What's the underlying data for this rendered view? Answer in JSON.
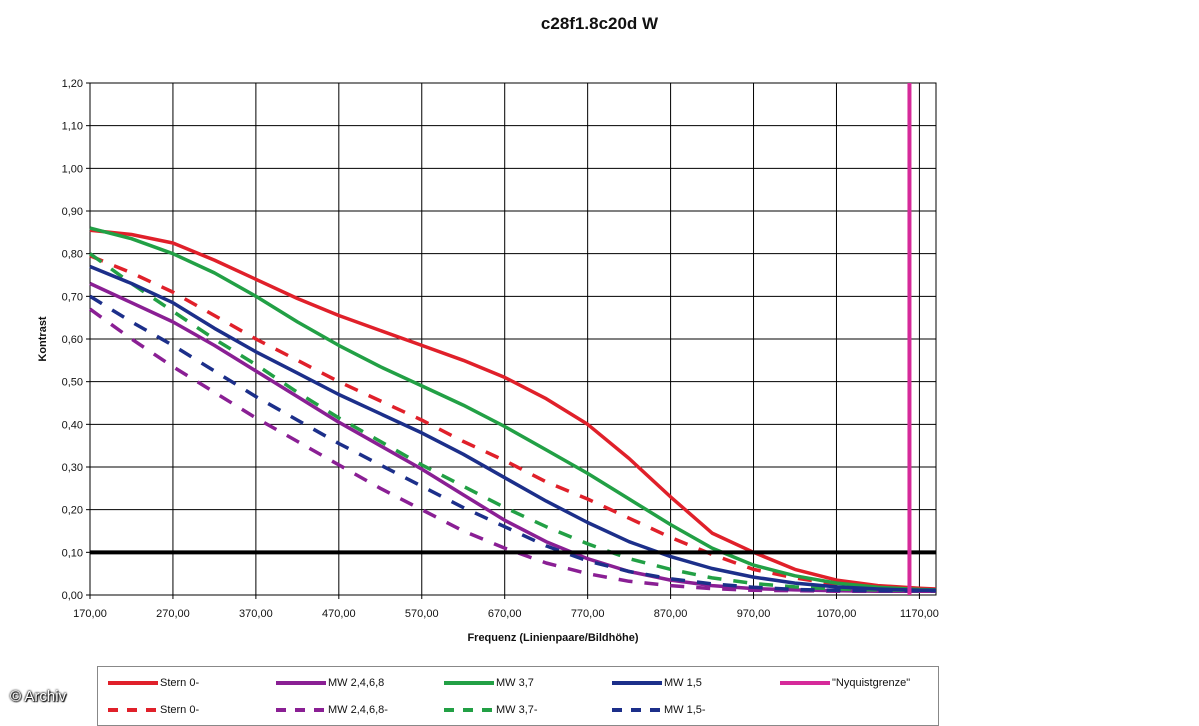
{
  "chart_data": {
    "type": "line",
    "title": "c28f1.8c20d W",
    "xlabel": "Frequenz (Linienpaare/Bildhöhe)",
    "ylabel": "Kontrast",
    "xlim": [
      170,
      1190
    ],
    "ylim": [
      0,
      1.2
    ],
    "x_ticks": [
      "170,00",
      "270,00",
      "370,00",
      "470,00",
      "570,00",
      "670,00",
      "770,00",
      "870,00",
      "970,00",
      "1070,00",
      "1170,00"
    ],
    "y_ticks": [
      "0,00",
      "0,10",
      "0,20",
      "0,30",
      "0,40",
      "0,50",
      "0,60",
      "0,70",
      "0,80",
      "0,90",
      "1,00",
      "1,10",
      "1,20"
    ],
    "grid": true,
    "legend": "bottom",
    "x": [
      170,
      220,
      270,
      320,
      370,
      420,
      470,
      520,
      570,
      620,
      670,
      720,
      770,
      820,
      870,
      920,
      970,
      1020,
      1070,
      1120,
      1170,
      1190
    ],
    "series": [
      {
        "name": "Stern 0-",
        "color": "#e0202a",
        "dash": false,
        "values": [
          0.855,
          0.845,
          0.825,
          0.785,
          0.74,
          0.695,
          0.655,
          0.62,
          0.585,
          0.55,
          0.51,
          0.46,
          0.4,
          0.32,
          0.23,
          0.145,
          0.1,
          0.06,
          0.035,
          0.022,
          0.016,
          0.014
        ]
      },
      {
        "name": "Stern 0-",
        "color": "#e0202a",
        "dash": true,
        "values": [
          0.795,
          0.755,
          0.71,
          0.655,
          0.6,
          0.55,
          0.5,
          0.455,
          0.41,
          0.36,
          0.315,
          0.265,
          0.225,
          0.18,
          0.135,
          0.095,
          0.06,
          0.04,
          0.025,
          0.017,
          0.013,
          0.012
        ]
      },
      {
        "name": "MW 2,4,6,8",
        "color": "#8a1f94",
        "dash": false,
        "values": [
          0.73,
          0.685,
          0.64,
          0.585,
          0.525,
          0.465,
          0.405,
          0.35,
          0.295,
          0.235,
          0.175,
          0.125,
          0.085,
          0.055,
          0.035,
          0.022,
          0.015,
          0.012,
          0.01,
          0.009,
          0.009,
          0.009
        ]
      },
      {
        "name": "MW 2,4,6,8-",
        "color": "#8a1f94",
        "dash": true,
        "values": [
          0.67,
          0.6,
          0.535,
          0.475,
          0.415,
          0.36,
          0.305,
          0.25,
          0.2,
          0.15,
          0.11,
          0.075,
          0.05,
          0.032,
          0.022,
          0.015,
          0.011,
          0.01,
          0.009,
          0.009,
          0.009,
          0.009
        ]
      },
      {
        "name": "MW 3,7",
        "color": "#22a045",
        "dash": false,
        "values": [
          0.86,
          0.835,
          0.8,
          0.755,
          0.7,
          0.64,
          0.585,
          0.535,
          0.49,
          0.445,
          0.395,
          0.34,
          0.285,
          0.225,
          0.165,
          0.11,
          0.07,
          0.045,
          0.028,
          0.018,
          0.013,
          0.012
        ]
      },
      {
        "name": "MW 3,7-",
        "color": "#22a045",
        "dash": true,
        "values": [
          0.8,
          0.73,
          0.665,
          0.6,
          0.54,
          0.475,
          0.415,
          0.36,
          0.305,
          0.255,
          0.205,
          0.16,
          0.12,
          0.085,
          0.06,
          0.04,
          0.027,
          0.019,
          0.014,
          0.012,
          0.011,
          0.011
        ]
      },
      {
        "name": "MW 1,5",
        "color": "#1c2f8a",
        "dash": false,
        "values": [
          0.77,
          0.73,
          0.685,
          0.625,
          0.57,
          0.52,
          0.47,
          0.425,
          0.38,
          0.33,
          0.275,
          0.22,
          0.17,
          0.125,
          0.09,
          0.062,
          0.042,
          0.028,
          0.019,
          0.014,
          0.011,
          0.011
        ]
      },
      {
        "name": "MW 1,5-",
        "color": "#1c2f8a",
        "dash": true,
        "values": [
          0.7,
          0.64,
          0.585,
          0.525,
          0.465,
          0.41,
          0.355,
          0.305,
          0.255,
          0.205,
          0.16,
          0.115,
          0.08,
          0.055,
          0.038,
          0.026,
          0.018,
          0.013,
          0.011,
          0.01,
          0.01,
          0.01
        ]
      }
    ],
    "reference_lines": [
      {
        "orientation": "horizontal",
        "value": 0.1,
        "color": "#000000"
      },
      {
        "orientation": "vertical",
        "value": 1158,
        "color": "#d62a9a",
        "name": "\"Nyquistgrenze\""
      }
    ]
  },
  "legend_entries": [
    {
      "label": "Stern 0-",
      "color": "#e0202a",
      "dash": false
    },
    {
      "label": "MW 2,4,6,8",
      "color": "#8a1f94",
      "dash": false
    },
    {
      "label": "MW 3,7",
      "color": "#22a045",
      "dash": false
    },
    {
      "label": "MW 1,5",
      "color": "#1c2f8a",
      "dash": false
    },
    {
      "label": "\"Nyquistgrenze\"",
      "color": "#d62a9a",
      "dash": false
    },
    {
      "label": "Stern 0-",
      "color": "#e0202a",
      "dash": true
    },
    {
      "label": "MW 2,4,6,8-",
      "color": "#8a1f94",
      "dash": true
    },
    {
      "label": "MW 3,7-",
      "color": "#22a045",
      "dash": true
    },
    {
      "label": "MW 1,5-",
      "color": "#1c2f8a",
      "dash": true
    }
  ],
  "copyright": "© Archiv"
}
